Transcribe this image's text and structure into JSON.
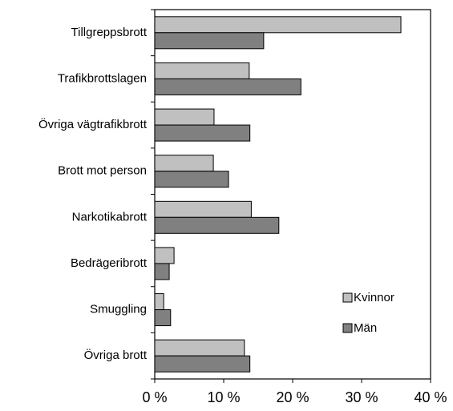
{
  "chart_data": {
    "type": "barh",
    "categories": [
      "Tillgreppsbrott",
      "Trafikbrottslagen",
      "Övriga vägtrafikbrott",
      "Brott mot person",
      "Narkotikabrott",
      "Bedrägeribrott",
      "Smuggling",
      "Övriga brott"
    ],
    "series": [
      {
        "name": "Kvinnor",
        "color": "#c0c0c0",
        "values": [
          35.7,
          13.7,
          8.6,
          8.5,
          14.0,
          2.8,
          1.3,
          13.0
        ]
      },
      {
        "name": "Män",
        "color": "#808080",
        "values": [
          15.8,
          21.2,
          13.8,
          10.7,
          18.0,
          2.1,
          2.3,
          13.8
        ]
      }
    ],
    "xlim": [
      0,
      40
    ],
    "xticks": [
      {
        "value": 0,
        "label": "0 %"
      },
      {
        "value": 10,
        "label": "10 %"
      },
      {
        "value": 20,
        "label": "20 %"
      },
      {
        "value": 30,
        "label": "30 %"
      },
      {
        "value": 40,
        "label": "40 %"
      }
    ],
    "legend": "lower right"
  }
}
